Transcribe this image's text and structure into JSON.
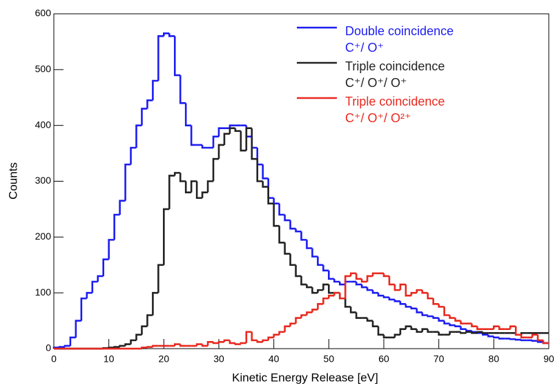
{
  "chart_data": {
    "type": "histogram",
    "xlabel": "Kinetic Energy Release [eV]",
    "ylabel": "Counts",
    "bins": [
      0,
      1,
      2,
      3,
      4,
      5,
      6,
      7,
      8,
      9,
      10,
      11,
      12,
      13,
      14,
      15,
      16,
      17,
      18,
      19,
      20,
      21,
      22,
      23,
      24,
      25,
      26,
      27,
      28,
      29,
      30,
      31,
      32,
      33,
      34,
      35,
      36,
      37,
      38,
      39,
      40,
      41,
      42,
      43,
      44,
      45,
      46,
      47,
      48,
      49,
      50,
      51,
      52,
      53,
      54,
      55,
      56,
      57,
      58,
      59,
      60,
      61,
      62,
      63,
      64,
      65,
      66,
      67,
      68,
      69,
      70,
      71,
      72,
      73,
      74,
      75,
      76,
      77,
      78,
      79,
      80,
      81,
      82,
      83,
      84,
      85,
      86,
      87,
      88,
      89,
      90
    ],
    "xlim": [
      0,
      90
    ],
    "xticks": [
      0,
      10,
      20,
      30,
      40,
      50,
      60,
      70,
      80,
      90
    ],
    "ylim": [
      0,
      600
    ],
    "yticks": [
      0,
      100,
      200,
      300,
      400,
      500,
      600
    ],
    "series": [
      {
        "name": "Double coincidence",
        "ions": "C⁺/ O⁺",
        "color": "#1c1cf0",
        "values": [
          2,
          3,
          5,
          20,
          50,
          90,
          100,
          120,
          130,
          160,
          195,
          240,
          265,
          330,
          360,
          400,
          430,
          445,
          480,
          560,
          565,
          560,
          490,
          440,
          400,
          365,
          365,
          360,
          360,
          380,
          395,
          395,
          400,
          400,
          400,
          380,
          360,
          330,
          305,
          270,
          260,
          240,
          230,
          215,
          210,
          195,
          180,
          165,
          150,
          140,
          125,
          120,
          115,
          120,
          120,
          115,
          110,
          105,
          100,
          95,
          92,
          88,
          85,
          80,
          75,
          72,
          65,
          60,
          58,
          55,
          50,
          45,
          42,
          40,
          35,
          32,
          30,
          28,
          25,
          22,
          20,
          18,
          18,
          17,
          16,
          15,
          15,
          14,
          12,
          10
        ]
      },
      {
        "name": "Triple coincidence",
        "ions": "C⁺/ O⁺/ O⁺",
        "color": "#222222",
        "values": [
          0,
          0,
          0,
          0,
          0,
          0,
          0,
          0,
          0,
          1,
          2,
          3,
          5,
          8,
          15,
          25,
          40,
          60,
          100,
          150,
          250,
          310,
          315,
          300,
          280,
          300,
          270,
          280,
          300,
          340,
          365,
          385,
          395,
          390,
          355,
          395,
          340,
          300,
          290,
          260,
          220,
          190,
          170,
          150,
          130,
          115,
          110,
          100,
          105,
          115,
          100,
          100,
          90,
          75,
          65,
          55,
          55,
          50,
          40,
          25,
          20,
          20,
          25,
          35,
          40,
          35,
          30,
          35,
          30,
          30,
          25,
          25,
          30,
          30,
          28,
          30,
          28,
          30,
          28,
          28,
          28,
          28,
          28,
          28,
          25,
          28,
          28,
          28,
          28,
          28
        ]
      },
      {
        "name": "Triple coincidence",
        "ions": "C⁺/ O⁺/ O²⁺",
        "color": "#e8281e",
        "values": [
          0,
          0,
          0,
          0,
          0,
          0,
          0,
          0,
          0,
          0,
          0,
          0,
          0,
          0,
          0,
          0,
          2,
          3,
          5,
          5,
          5,
          5,
          8,
          5,
          5,
          5,
          8,
          5,
          12,
          10,
          12,
          15,
          10,
          8,
          10,
          30,
          15,
          12,
          15,
          20,
          25,
          30,
          40,
          45,
          55,
          60,
          65,
          70,
          80,
          90,
          95,
          100,
          90,
          130,
          135,
          125,
          120,
          130,
          135,
          135,
          130,
          115,
          105,
          115,
          95,
          100,
          105,
          100,
          90,
          80,
          75,
          60,
          55,
          50,
          45,
          45,
          40,
          35,
          35,
          35,
          40,
          35,
          35,
          40,
          25,
          20,
          20,
          25,
          15,
          10
        ]
      }
    ]
  }
}
